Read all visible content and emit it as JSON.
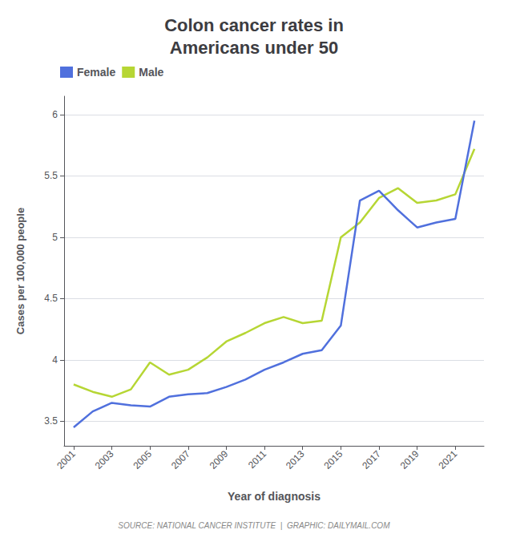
{
  "chart_data": {
    "type": "line",
    "title": "Colon cancer rates in\nAmericans under 50",
    "xlabel": "Year of diagnosis",
    "ylabel": "Cases per 100,000 people",
    "annotations": [
      "SOURCE: NATIONAL CANCER INSTITUTE  |  GRAPHIC: DAILYMAIL.COM"
    ],
    "x": [
      2001,
      2002,
      2003,
      2004,
      2005,
      2006,
      2007,
      2008,
      2009,
      2010,
      2011,
      2012,
      2013,
      2014,
      2015,
      2016,
      2017,
      2018,
      2019,
      2020,
      2021,
      2022
    ],
    "series": [
      {
        "name": "Female",
        "values": [
          3.45,
          3.58,
          3.65,
          3.63,
          3.62,
          3.7,
          3.72,
          3.73,
          3.78,
          3.84,
          3.92,
          3.98,
          4.05,
          4.08,
          4.28,
          5.3,
          5.38,
          5.22,
          5.08,
          5.12,
          5.15,
          5.95
        ]
      },
      {
        "name": "Male",
        "values": [
          3.8,
          3.74,
          3.7,
          3.76,
          3.98,
          3.88,
          3.92,
          4.02,
          4.15,
          4.22,
          4.3,
          4.35,
          4.3,
          4.32,
          5.0,
          5.12,
          5.32,
          5.4,
          5.28,
          5.3,
          5.35,
          5.72
        ]
      }
    ],
    "xlim": [
      2000.5,
      2022.5
    ],
    "xticks": [
      2001,
      2003,
      2005,
      2007,
      2009,
      2011,
      2013,
      2015,
      2017,
      2019,
      2021
    ],
    "ylim": [
      3.3,
      6.15
    ],
    "yticks": [
      3.5,
      4,
      4.5,
      5,
      5.5,
      6
    ],
    "grid": true,
    "legend": "upper left"
  }
}
